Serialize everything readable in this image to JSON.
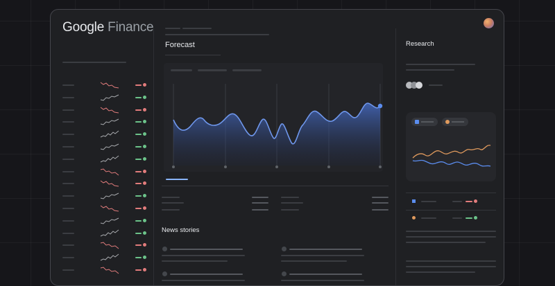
{
  "app": {
    "brand_google": "Google",
    "brand_finance": "Finance"
  },
  "main": {
    "forecast_title": "Forecast",
    "news_title": "News stories"
  },
  "research": {
    "title": "Research"
  },
  "watchlist": {
    "rows": [
      {
        "trend": "down",
        "status": "red"
      },
      {
        "trend": "up",
        "status": "green"
      },
      {
        "trend": "down",
        "status": "red"
      },
      {
        "trend": "up",
        "status": "green"
      },
      {
        "trend": "up",
        "status": "green"
      },
      {
        "trend": "up",
        "status": "green"
      },
      {
        "trend": "up",
        "status": "green"
      },
      {
        "trend": "down",
        "status": "red"
      },
      {
        "trend": "down",
        "status": "red"
      },
      {
        "trend": "up",
        "status": "green"
      },
      {
        "trend": "down",
        "status": "red"
      },
      {
        "trend": "up",
        "status": "green"
      },
      {
        "trend": "up",
        "status": "green"
      },
      {
        "trend": "down",
        "status": "red"
      },
      {
        "trend": "up",
        "status": "green"
      },
      {
        "trend": "down",
        "status": "red"
      }
    ]
  },
  "colors": {
    "accent_blue": "#5b8def",
    "red": "#e27c7c",
    "green": "#6cc38a",
    "orange": "#e09a5d"
  },
  "icons": {
    "avatar": "user-avatar",
    "watchlist_status": "status-dot"
  }
}
